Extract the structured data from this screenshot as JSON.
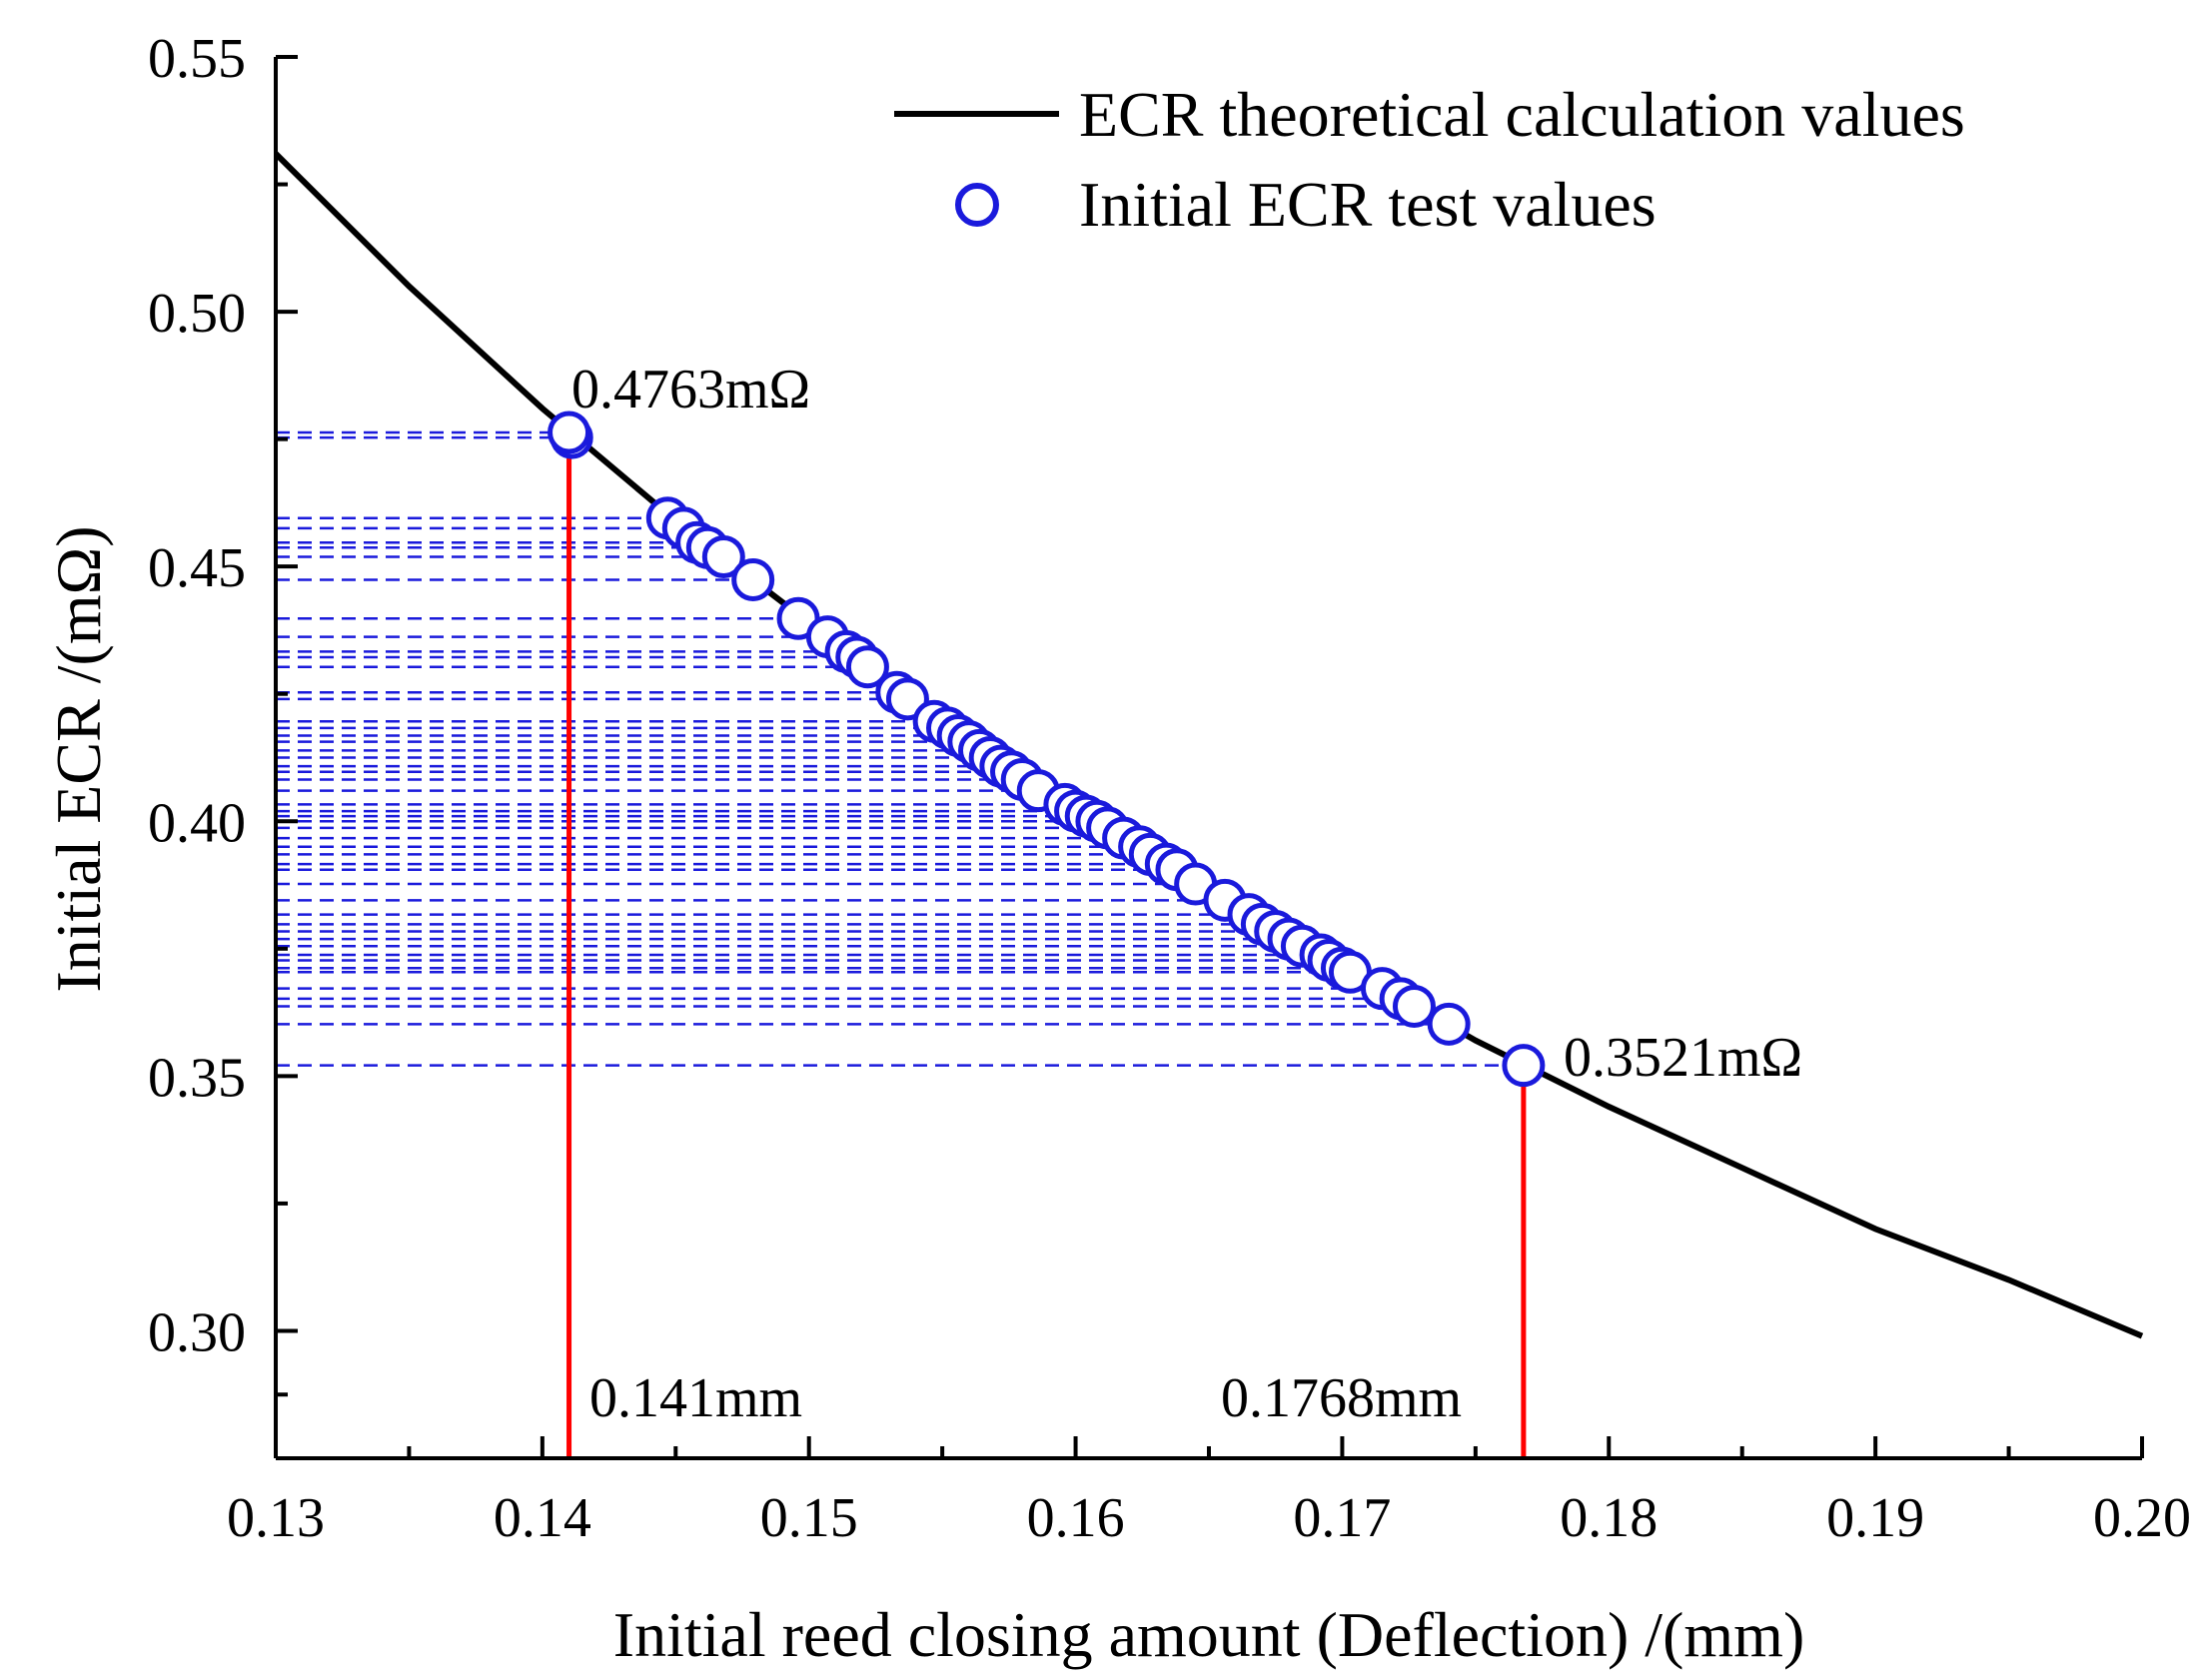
{
  "chart_data": {
    "type": "scatter",
    "title": "",
    "xlabel": "Initial reed closing amount (Deflection) /(mm)",
    "ylabel": "Initial ECR /(mΩ)",
    "xlim": [
      0.13,
      0.2
    ],
    "ylim": [
      0.275,
      0.55
    ],
    "x_ticks": [
      0.13,
      0.14,
      0.15,
      0.16,
      0.17,
      0.18,
      0.19,
      0.2
    ],
    "x_tick_labels": [
      "0.13",
      "0.14",
      "0.15",
      "0.16",
      "0.17",
      "0.18",
      "0.19",
      "0.20"
    ],
    "y_ticks": [
      0.3,
      0.35,
      0.4,
      0.45,
      0.5,
      0.55
    ],
    "y_tick_labels": [
      "0.30",
      "0.35",
      "0.40",
      "0.45",
      "0.50",
      "0.55"
    ],
    "grid": false,
    "legend_position": "top-right",
    "colors": {
      "curve": "#000000",
      "points": "#1a1adc",
      "guides": "#1a1adc",
      "markers": "#ff0000"
    },
    "series": [
      {
        "name": "ECR theoretical calculation values",
        "kind": "line",
        "x": [
          0.13,
          0.135,
          0.14,
          0.145,
          0.15,
          0.155,
          0.16,
          0.165,
          0.17,
          0.175,
          0.18,
          0.185,
          0.19,
          0.195,
          0.2
        ],
        "y": [
          0.531,
          0.505,
          0.481,
          0.459,
          0.439,
          0.42,
          0.403,
          0.387,
          0.372,
          0.357,
          0.344,
          0.332,
          0.32,
          0.31,
          0.299
        ]
      },
      {
        "name": "Initial ECR test values",
        "kind": "scatter",
        "x": [
          0.1411,
          0.141,
          0.1447,
          0.1453,
          0.1458,
          0.1462,
          0.1468,
          0.1479,
          0.1496,
          0.1507,
          0.1514,
          0.1518,
          0.1522,
          0.1533,
          0.1537,
          0.1547,
          0.1552,
          0.1556,
          0.156,
          0.1564,
          0.1568,
          0.1572,
          0.1576,
          0.158,
          0.1586,
          0.1596,
          0.16,
          0.1604,
          0.1608,
          0.1612,
          0.1618,
          0.1624,
          0.1628,
          0.1634,
          0.1638,
          0.1645,
          0.1656,
          0.1665,
          0.167,
          0.1675,
          0.168,
          0.1685,
          0.1692,
          0.1695,
          0.17,
          0.1703,
          0.1715,
          0.1722,
          0.1727,
          0.174,
          0.1768
        ],
        "y": [
          0.4753,
          0.4763,
          0.4595,
          0.4575,
          0.4547,
          0.4537,
          0.4519,
          0.4474,
          0.4398,
          0.4362,
          0.4333,
          0.4322,
          0.4303,
          0.4253,
          0.424,
          0.4196,
          0.4183,
          0.4168,
          0.4156,
          0.4139,
          0.4125,
          0.4108,
          0.4097,
          0.4082,
          0.406,
          0.4033,
          0.402,
          0.401,
          0.4,
          0.3987,
          0.3967,
          0.395,
          0.3935,
          0.3916,
          0.3905,
          0.3877,
          0.3845,
          0.3817,
          0.3798,
          0.3784,
          0.3769,
          0.3755,
          0.3738,
          0.3727,
          0.3712,
          0.3704,
          0.3672,
          0.3652,
          0.3637,
          0.3602,
          0.3521
        ]
      }
    ],
    "reference_lines": [
      {
        "x": 0.141,
        "y": 0.4763,
        "color": "red"
      },
      {
        "x": 0.1768,
        "y": 0.3521,
        "color": "red"
      }
    ],
    "annotations": {
      "max_ecr": "0.4763mΩ",
      "min_ecr": "0.3521mΩ",
      "max_deflection": "0.1768mm",
      "min_deflection": "0.141mm"
    },
    "legend": {
      "line_label": "ECR theoretical calculation values",
      "marker_label": "Initial ECR test values"
    }
  }
}
